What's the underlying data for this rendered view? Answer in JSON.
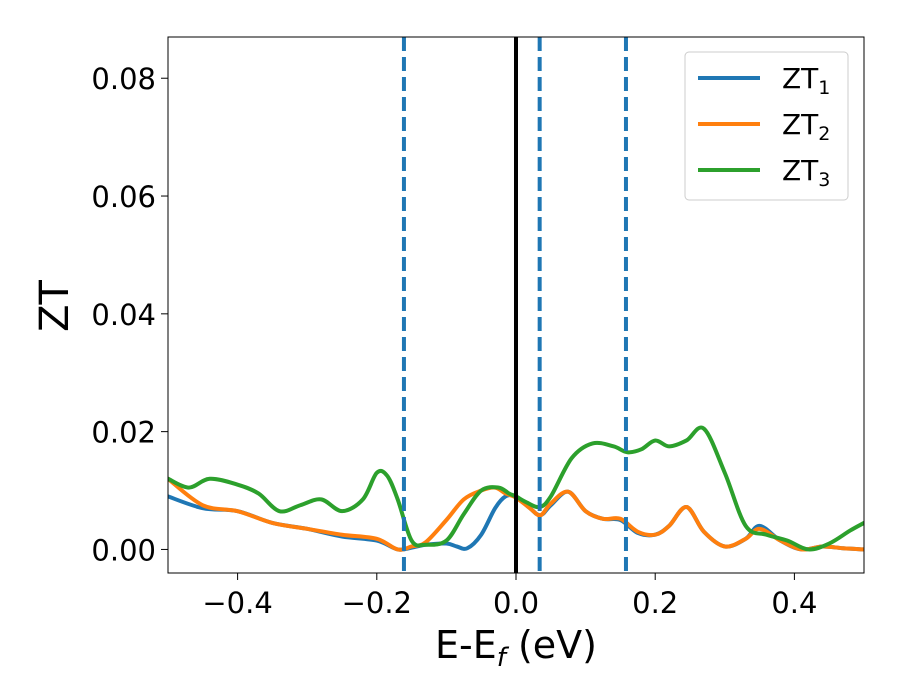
{
  "chart_data": {
    "type": "line",
    "title": "",
    "xlabel": "E-E",
    "xlabel_sub": "f",
    "xlabel_suffix": " (eV)",
    "ylabel": "ZT",
    "xlim": [
      -0.5,
      0.5
    ],
    "ylim": [
      -0.004,
      0.087
    ],
    "xticks": [
      -0.4,
      -0.2,
      0.0,
      0.2,
      0.4
    ],
    "xtick_labels": [
      "−0.4",
      "−0.2",
      "0.0",
      "0.2",
      "0.4"
    ],
    "yticks": [
      0.0,
      0.02,
      0.04,
      0.06,
      0.08
    ],
    "ytick_labels": [
      "0.00",
      "0.02",
      "0.04",
      "0.06",
      "0.08"
    ],
    "grid": false,
    "legend_position": "top-right",
    "vlines": [
      {
        "x": 0.0,
        "style": "solid",
        "color": "#000000"
      },
      {
        "x": -0.161,
        "style": "dashed",
        "color": "#1f77b4"
      },
      {
        "x": 0.034,
        "style": "dashed",
        "color": "#1f77b4"
      },
      {
        "x": 0.158,
        "style": "dashed",
        "color": "#1f77b4"
      }
    ],
    "series": [
      {
        "name": "ZT",
        "name_sub": "1",
        "color": "#1f77b4",
        "x": [
          -0.5,
          -0.45,
          -0.4,
          -0.35,
          -0.3,
          -0.25,
          -0.2,
          -0.17,
          -0.15,
          -0.13,
          -0.1,
          -0.085,
          -0.07,
          -0.05,
          -0.03,
          -0.015,
          0.0,
          0.02,
          0.035,
          0.05,
          0.075,
          0.1,
          0.125,
          0.15,
          0.175,
          0.2,
          0.22,
          0.245,
          0.27,
          0.3,
          0.33,
          0.35,
          0.38,
          0.41,
          0.44,
          0.47,
          0.5
        ],
        "values": [
          0.009,
          0.007,
          0.0065,
          0.0045,
          0.0035,
          0.0022,
          0.0015,
          0.0,
          0.0003,
          0.0008,
          0.001,
          0.0005,
          0.0002,
          0.0025,
          0.007,
          0.009,
          0.009,
          0.007,
          0.0058,
          0.0075,
          0.0098,
          0.0065,
          0.0052,
          0.005,
          0.0028,
          0.0025,
          0.004,
          0.0072,
          0.003,
          0.0005,
          0.0018,
          0.004,
          0.0015,
          0.0,
          0.0005,
          0.0002,
          0.0
        ]
      },
      {
        "name": "ZT",
        "name_sub": "2",
        "color": "#ff7f0e",
        "x": [
          -0.5,
          -0.45,
          -0.4,
          -0.35,
          -0.3,
          -0.25,
          -0.2,
          -0.17,
          -0.15,
          -0.13,
          -0.1,
          -0.075,
          -0.05,
          -0.03,
          -0.015,
          0.0,
          0.02,
          0.035,
          0.05,
          0.075,
          0.1,
          0.125,
          0.15,
          0.175,
          0.2,
          0.22,
          0.245,
          0.27,
          0.3,
          0.33,
          0.35,
          0.38,
          0.41,
          0.44,
          0.47,
          0.5
        ],
        "values": [
          0.012,
          0.0075,
          0.0065,
          0.0045,
          0.0035,
          0.0025,
          0.0018,
          0.0,
          0.0005,
          0.0012,
          0.005,
          0.0085,
          0.01,
          0.0105,
          0.0095,
          0.0088,
          0.007,
          0.0058,
          0.0078,
          0.0098,
          0.0065,
          0.0052,
          0.0052,
          0.003,
          0.0025,
          0.004,
          0.0072,
          0.003,
          0.0005,
          0.0018,
          0.0035,
          0.0015,
          0.0,
          0.0005,
          0.0002,
          0.0
        ]
      },
      {
        "name": "ZT",
        "name_sub": "3",
        "color": "#2ca02c",
        "x": [
          -0.5,
          -0.47,
          -0.44,
          -0.4,
          -0.37,
          -0.34,
          -0.31,
          -0.28,
          -0.25,
          -0.22,
          -0.2,
          -0.185,
          -0.17,
          -0.15,
          -0.13,
          -0.1,
          -0.075,
          -0.05,
          -0.025,
          -0.01,
          0.0,
          0.015,
          0.034,
          0.05,
          0.08,
          0.11,
          0.14,
          0.16,
          0.18,
          0.2,
          0.22,
          0.245,
          0.27,
          0.3,
          0.33,
          0.36,
          0.39,
          0.42,
          0.45,
          0.48,
          0.5
        ],
        "values": [
          0.012,
          0.0105,
          0.012,
          0.011,
          0.0095,
          0.0065,
          0.0075,
          0.0085,
          0.0065,
          0.0085,
          0.013,
          0.0125,
          0.0085,
          0.0015,
          0.0008,
          0.0015,
          0.006,
          0.01,
          0.0105,
          0.0095,
          0.009,
          0.008,
          0.0072,
          0.009,
          0.0155,
          0.018,
          0.0175,
          0.0165,
          0.017,
          0.0185,
          0.0175,
          0.0185,
          0.0205,
          0.013,
          0.004,
          0.0025,
          0.0015,
          0.0,
          0.001,
          0.0032,
          0.0045
        ]
      }
    ]
  }
}
